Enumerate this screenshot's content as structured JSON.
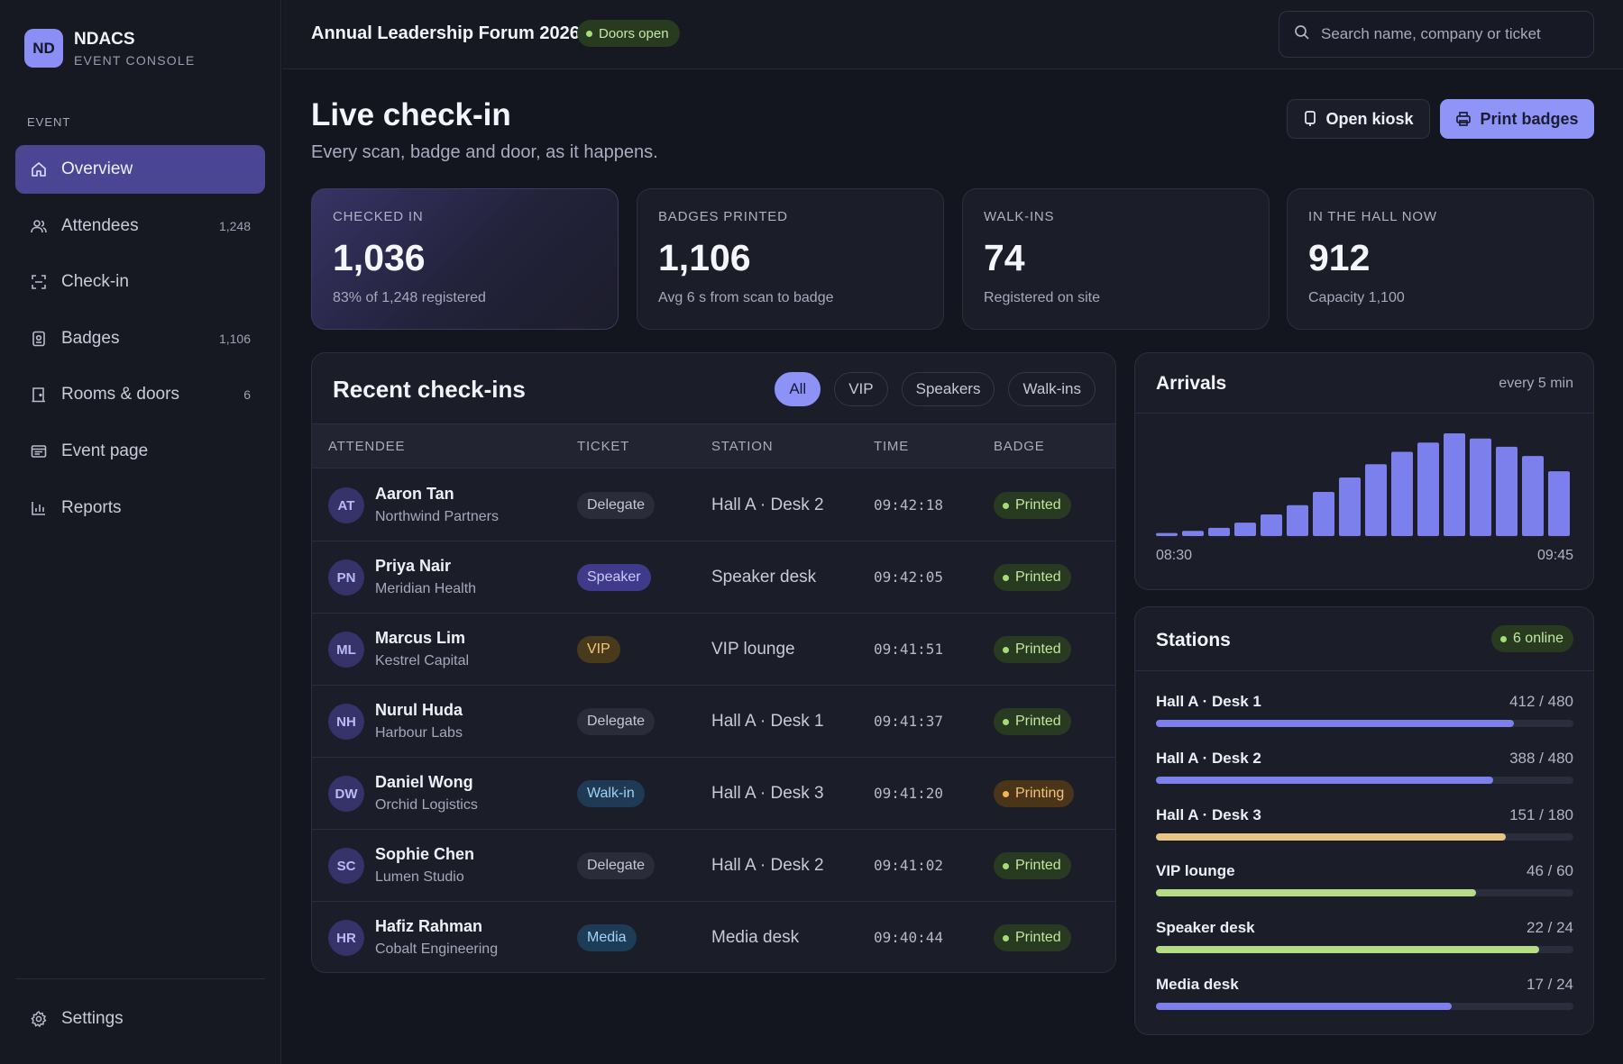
{
  "brand": {
    "initials": "ND",
    "name": "NDACS",
    "subtitle": "EVENT CONSOLE"
  },
  "sidebar": {
    "section_label": "EVENT",
    "items": [
      {
        "label": "Overview",
        "count": "",
        "icon": "home-icon",
        "active": true
      },
      {
        "label": "Attendees",
        "count": "1,248",
        "icon": "users-icon"
      },
      {
        "label": "Check-in",
        "count": "",
        "icon": "scan-icon"
      },
      {
        "label": "Badges",
        "count": "1,106",
        "icon": "badge-icon"
      },
      {
        "label": "Rooms & doors",
        "count": "6",
        "icon": "door-icon"
      },
      {
        "label": "Event page",
        "count": "",
        "icon": "page-icon"
      },
      {
        "label": "Reports",
        "count": "",
        "icon": "bar-chart-icon"
      }
    ],
    "settings_label": "Settings"
  },
  "topbar": {
    "event_title": "Annual Leadership Forum 2026",
    "status": "Doors open",
    "search_placeholder": "Search name, company or ticket"
  },
  "header": {
    "title": "Live check-in",
    "subtitle": "Every scan, badge and door, as it happens.",
    "kiosk_label": "Open kiosk",
    "print_label": "Print badges"
  },
  "stats": [
    {
      "label": "CHECKED IN",
      "value": "1,036",
      "foot": "83% of 1,248 registered"
    },
    {
      "label": "BADGES PRINTED",
      "value": "1,106",
      "foot": "Avg 6 s from scan to badge"
    },
    {
      "label": "WALK-INS",
      "value": "74",
      "foot": "Registered on site"
    },
    {
      "label": "IN THE HALL NOW",
      "value": "912",
      "foot": "Capacity 1,100"
    }
  ],
  "recent": {
    "title": "Recent check-ins",
    "filters": [
      "All",
      "VIP",
      "Speakers",
      "Walk-ins"
    ],
    "active_filter": "All",
    "columns": [
      "ATTENDEE",
      "TICKET",
      "STATION",
      "TIME",
      "BADGE"
    ],
    "rows": [
      {
        "initials": "AT",
        "name": "Aaron Tan",
        "company": "Northwind Partners",
        "ticket": "Delegate",
        "station": "Hall A · Desk 2",
        "time": "09:42:18",
        "badge": "Printed"
      },
      {
        "initials": "PN",
        "name": "Priya Nair",
        "company": "Meridian Health",
        "ticket": "Speaker",
        "station": "Speaker desk",
        "time": "09:42:05",
        "badge": "Printed"
      },
      {
        "initials": "ML",
        "name": "Marcus Lim",
        "company": "Kestrel Capital",
        "ticket": "VIP",
        "station": "VIP lounge",
        "time": "09:41:51",
        "badge": "Printed"
      },
      {
        "initials": "NH",
        "name": "Nurul Huda",
        "company": "Harbour Labs",
        "ticket": "Delegate",
        "station": "Hall A · Desk 1",
        "time": "09:41:37",
        "badge": "Printed"
      },
      {
        "initials": "DW",
        "name": "Daniel Wong",
        "company": "Orchid Logistics",
        "ticket": "Walk-in",
        "station": "Hall A · Desk 3",
        "time": "09:41:20",
        "badge": "Printing"
      },
      {
        "initials": "SC",
        "name": "Sophie Chen",
        "company": "Lumen Studio",
        "ticket": "Delegate",
        "station": "Hall A · Desk 2",
        "time": "09:41:02",
        "badge": "Printed"
      },
      {
        "initials": "HR",
        "name": "Hafiz Rahman",
        "company": "Cobalt Engineering",
        "ticket": "Media",
        "station": "Media desk",
        "time": "09:40:44",
        "badge": "Printed"
      }
    ]
  },
  "arrivals": {
    "title": "Arrivals",
    "note": "every 5 min",
    "x_start": "08:30",
    "x_end": "09:45"
  },
  "chart_data": {
    "type": "bar",
    "title": "Arrivals",
    "categories": [
      "08:30",
      "08:35",
      "08:40",
      "08:45",
      "08:50",
      "08:55",
      "09:00",
      "09:05",
      "09:10",
      "09:15",
      "09:20",
      "09:25",
      "09:30",
      "09:35",
      "09:40",
      "09:45"
    ],
    "values": [
      3,
      5,
      8,
      13,
      21,
      30,
      43,
      57,
      70,
      82,
      91,
      100,
      95,
      87,
      78,
      63
    ],
    "color": "#7b80ec",
    "xlabel": "",
    "ylabel": "",
    "grid": false
  },
  "stations": {
    "title": "Stations",
    "online": "6 online",
    "items": [
      {
        "name": "Hall A · Desk 1",
        "count": "412 / 480",
        "fill": 0.858,
        "color": "#7b80ec"
      },
      {
        "name": "Hall A · Desk 2",
        "count": "388 / 480",
        "fill": 0.808,
        "color": "#7b80ec"
      },
      {
        "name": "Hall A · Desk 3",
        "count": "151 / 180",
        "fill": 0.839,
        "color": "#e7c583"
      },
      {
        "name": "VIP lounge",
        "count": "46 / 60",
        "fill": 0.767,
        "color": "#b4dc86"
      },
      {
        "name": "Speaker desk",
        "count": "22 / 24",
        "fill": 0.917,
        "color": "#b4dc86"
      },
      {
        "name": "Media desk",
        "count": "17 / 24",
        "fill": 0.708,
        "color": "#7b80ec"
      }
    ]
  }
}
